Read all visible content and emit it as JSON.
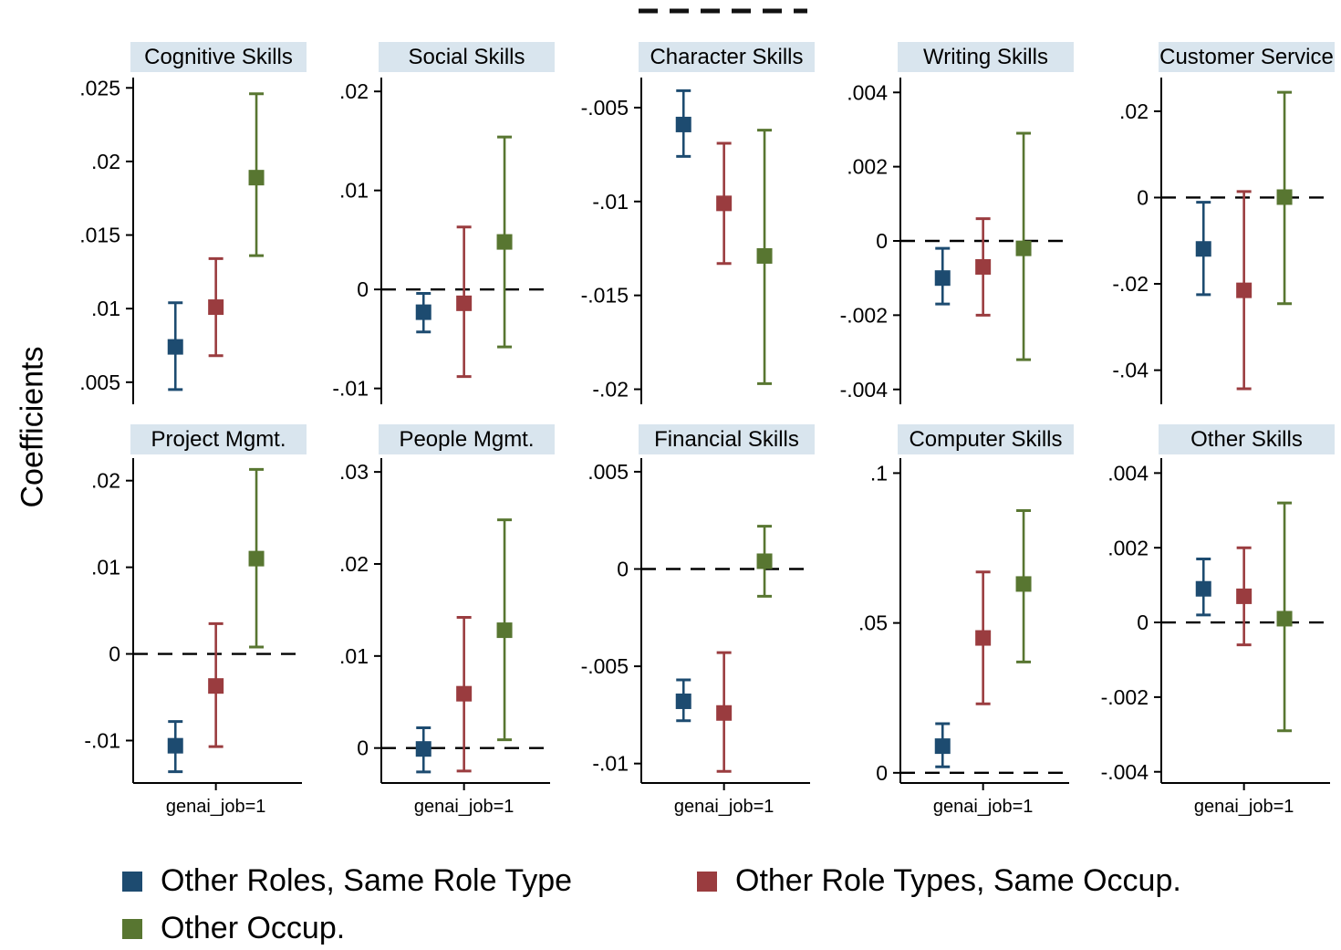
{
  "figure": {
    "ylabel": "Coefficients",
    "top_dashed_line": true,
    "colors": {
      "series1": "#1d4b70",
      "series2": "#9a3c3f",
      "series3": "#587631",
      "title_bg": "#d9e5ee",
      "axis": "#000000"
    }
  },
  "legend": {
    "items": [
      {
        "label": "Other Roles, Same Role Type",
        "color": "#1d4b70"
      },
      {
        "label": "Other Role Types, Same Occup.",
        "color": "#9a3c3f"
      },
      {
        "label": "Other Occup.",
        "color": "#587631"
      }
    ]
  },
  "chart_data": [
    {
      "type": "errorbar",
      "title": "Cognitive Skills",
      "row": 0,
      "col": 0,
      "ylim": [
        0.0035,
        0.0257
      ],
      "zero_line": false,
      "yticks": [
        {
          "v": 0.005,
          "label": ".005"
        },
        {
          "v": 0.01,
          "label": ".01"
        },
        {
          "v": 0.015,
          "label": ".015"
        },
        {
          "v": 0.02,
          "label": ".02"
        },
        {
          "v": 0.025,
          "label": ".025"
        }
      ],
      "series": [
        {
          "name": "Other Roles, Same Role Type",
          "est": 0.0074,
          "lo": 0.0045,
          "hi": 0.0104
        },
        {
          "name": "Other Role Types, Same Occup.",
          "est": 0.0101,
          "lo": 0.0068,
          "hi": 0.0134
        },
        {
          "name": "Other Occup.",
          "est": 0.0189,
          "lo": 0.0136,
          "hi": 0.0246
        }
      ]
    },
    {
      "type": "errorbar",
      "title": "Social Skills",
      "row": 0,
      "col": 1,
      "ylim": [
        -0.0116,
        0.0214
      ],
      "zero_line": true,
      "yticks": [
        {
          "v": -0.01,
          "label": "-.01"
        },
        {
          "v": 0,
          "label": "0"
        },
        {
          "v": 0.01,
          "label": ".01"
        },
        {
          "v": 0.02,
          "label": ".02"
        }
      ],
      "series": [
        {
          "name": "Other Roles, Same Role Type",
          "est": -0.0023,
          "lo": -0.0043,
          "hi": -0.0004
        },
        {
          "name": "Other Role Types, Same Occup.",
          "est": -0.0014,
          "lo": -0.0088,
          "hi": 0.0063
        },
        {
          "name": "Other Occup.",
          "est": 0.0048,
          "lo": -0.0058,
          "hi": 0.0154
        }
      ]
    },
    {
      "type": "errorbar",
      "title": "Character Skills",
      "row": 0,
      "col": 2,
      "ylim": [
        -0.0208,
        -0.0034
      ],
      "zero_line": false,
      "yticks": [
        {
          "v": -0.02,
          "label": "-.02"
        },
        {
          "v": -0.015,
          "label": "-.015"
        },
        {
          "v": -0.01,
          "label": "-.01"
        },
        {
          "v": -0.005,
          "label": "-.005"
        }
      ],
      "series": [
        {
          "name": "Other Roles, Same Role Type",
          "est": -0.0059,
          "lo": -0.0076,
          "hi": -0.0041
        },
        {
          "name": "Other Role Types, Same Occup.",
          "est": -0.0101,
          "lo": -0.0133,
          "hi": -0.0069
        },
        {
          "name": "Other Occup.",
          "est": -0.0129,
          "lo": -0.0197,
          "hi": -0.0062
        }
      ]
    },
    {
      "type": "errorbar",
      "title": "Writing Skills",
      "row": 0,
      "col": 3,
      "ylim": [
        -0.0044,
        0.0044
      ],
      "zero_line": true,
      "yticks": [
        {
          "v": -0.004,
          "label": "-.004"
        },
        {
          "v": -0.002,
          "label": "-.002"
        },
        {
          "v": 0,
          "label": "0"
        },
        {
          "v": 0.002,
          "label": ".002"
        },
        {
          "v": 0.004,
          "label": ".004"
        }
      ],
      "series": [
        {
          "name": "Other Roles, Same Role Type",
          "est": -0.001,
          "lo": -0.0017,
          "hi": -0.0002
        },
        {
          "name": "Other Role Types, Same Occup.",
          "est": -0.0007,
          "lo": -0.002,
          "hi": 0.0006
        },
        {
          "name": "Other Occup.",
          "est": -0.0002,
          "lo": -0.0032,
          "hi": 0.0029
        }
      ]
    },
    {
      "type": "errorbar",
      "title": "Customer Service",
      "row": 0,
      "col": 4,
      "ylim": [
        -0.0479,
        0.0278
      ],
      "zero_line": true,
      "yticks": [
        {
          "v": -0.04,
          "label": "-.04"
        },
        {
          "v": -0.02,
          "label": "-.02"
        },
        {
          "v": 0,
          "label": "0"
        },
        {
          "v": 0.02,
          "label": ".02"
        }
      ],
      "series": [
        {
          "name": "Other Roles, Same Role Type",
          "est": -0.0119,
          "lo": -0.0225,
          "hi": -0.0011
        },
        {
          "name": "Other Role Types, Same Occup.",
          "est": -0.0215,
          "lo": -0.0443,
          "hi": 0.0014
        },
        {
          "name": "Other Occup.",
          "est": 0.0001,
          "lo": -0.0246,
          "hi": 0.0244
        }
      ]
    },
    {
      "type": "errorbar",
      "title": "Project Mgmt.",
      "row": 1,
      "col": 0,
      "xlabel": "genai_job=1",
      "ylim": [
        -0.0149,
        0.0226
      ],
      "zero_line": true,
      "yticks": [
        {
          "v": -0.01,
          "label": "-.01"
        },
        {
          "v": 0,
          "label": "0"
        },
        {
          "v": 0.01,
          "label": ".01"
        },
        {
          "v": 0.02,
          "label": ".02"
        }
      ],
      "series": [
        {
          "name": "Other Roles, Same Role Type",
          "est": -0.0106,
          "lo": -0.0136,
          "hi": -0.0078
        },
        {
          "name": "Other Role Types, Same Occup.",
          "est": -0.0037,
          "lo": -0.0107,
          "hi": 0.0035
        },
        {
          "name": "Other Occup.",
          "est": 0.011,
          "lo": 0.0008,
          "hi": 0.0213
        }
      ]
    },
    {
      "type": "errorbar",
      "title": "People Mgmt.",
      "row": 1,
      "col": 1,
      "xlabel": "genai_job=1",
      "ylim": [
        -0.0038,
        0.0315
      ],
      "zero_line": true,
      "yticks": [
        {
          "v": 0,
          "label": "0"
        },
        {
          "v": 0.01,
          "label": ".01"
        },
        {
          "v": 0.02,
          "label": ".02"
        },
        {
          "v": 0.03,
          "label": ".03"
        }
      ],
      "series": [
        {
          "name": "Other Roles, Same Role Type",
          "est": -0.0001,
          "lo": -0.0026,
          "hi": 0.0022
        },
        {
          "name": "Other Role Types, Same Occup.",
          "est": 0.0059,
          "lo": -0.0025,
          "hi": 0.0142
        },
        {
          "name": "Other Occup.",
          "est": 0.0128,
          "lo": 0.0009,
          "hi": 0.0248
        }
      ]
    },
    {
      "type": "errorbar",
      "title": "Financial Skills",
      "row": 1,
      "col": 2,
      "xlabel": "genai_job=1",
      "ylim": [
        -0.011,
        0.0057
      ],
      "zero_line": true,
      "yticks": [
        {
          "v": -0.01,
          "label": "-.01"
        },
        {
          "v": -0.005,
          "label": "-.005"
        },
        {
          "v": 0,
          "label": "0"
        },
        {
          "v": 0.005,
          "label": ".005"
        }
      ],
      "series": [
        {
          "name": "Other Roles, Same Role Type",
          "est": -0.0068,
          "lo": -0.0078,
          "hi": -0.0057
        },
        {
          "name": "Other Role Types, Same Occup.",
          "est": -0.0074,
          "lo": -0.0104,
          "hi": -0.0043
        },
        {
          "name": "Other Occup.",
          "est": 0.0004,
          "lo": -0.0014,
          "hi": 0.0022
        }
      ]
    },
    {
      "type": "errorbar",
      "title": "Computer Skills",
      "row": 1,
      "col": 3,
      "xlabel": "genai_job=1",
      "ylim": [
        -0.0034,
        0.105
      ],
      "zero_line": true,
      "yticks": [
        {
          "v": 0,
          "label": "0"
        },
        {
          "v": 0.05,
          "label": ".05"
        },
        {
          "v": 0.1,
          "label": ".1"
        }
      ],
      "series": [
        {
          "name": "Other Roles, Same Role Type",
          "est": 0.0089,
          "lo": 0.002,
          "hi": 0.0164
        },
        {
          "name": "Other Role Types, Same Occup.",
          "est": 0.045,
          "lo": 0.023,
          "hi": 0.067
        },
        {
          "name": "Other Occup.",
          "est": 0.063,
          "lo": 0.037,
          "hi": 0.0875
        }
      ]
    },
    {
      "type": "errorbar",
      "title": "Other Skills",
      "row": 1,
      "col": 4,
      "xlabel": "genai_job=1",
      "ylim": [
        -0.0043,
        0.0044
      ],
      "zero_line": true,
      "yticks": [
        {
          "v": -0.004,
          "label": "-.004"
        },
        {
          "v": -0.002,
          "label": "-.002"
        },
        {
          "v": 0,
          "label": "0"
        },
        {
          "v": 0.002,
          "label": ".002"
        },
        {
          "v": 0.004,
          "label": ".004"
        }
      ],
      "series": [
        {
          "name": "Other Roles, Same Role Type",
          "est": 0.0009,
          "lo": 0.0002,
          "hi": 0.0017
        },
        {
          "name": "Other Role Types, Same Occup.",
          "est": 0.0007,
          "lo": -0.0006,
          "hi": 0.002
        },
        {
          "name": "Other Occup.",
          "est": 0.0001,
          "lo": -0.0029,
          "hi": 0.0032
        }
      ]
    }
  ]
}
